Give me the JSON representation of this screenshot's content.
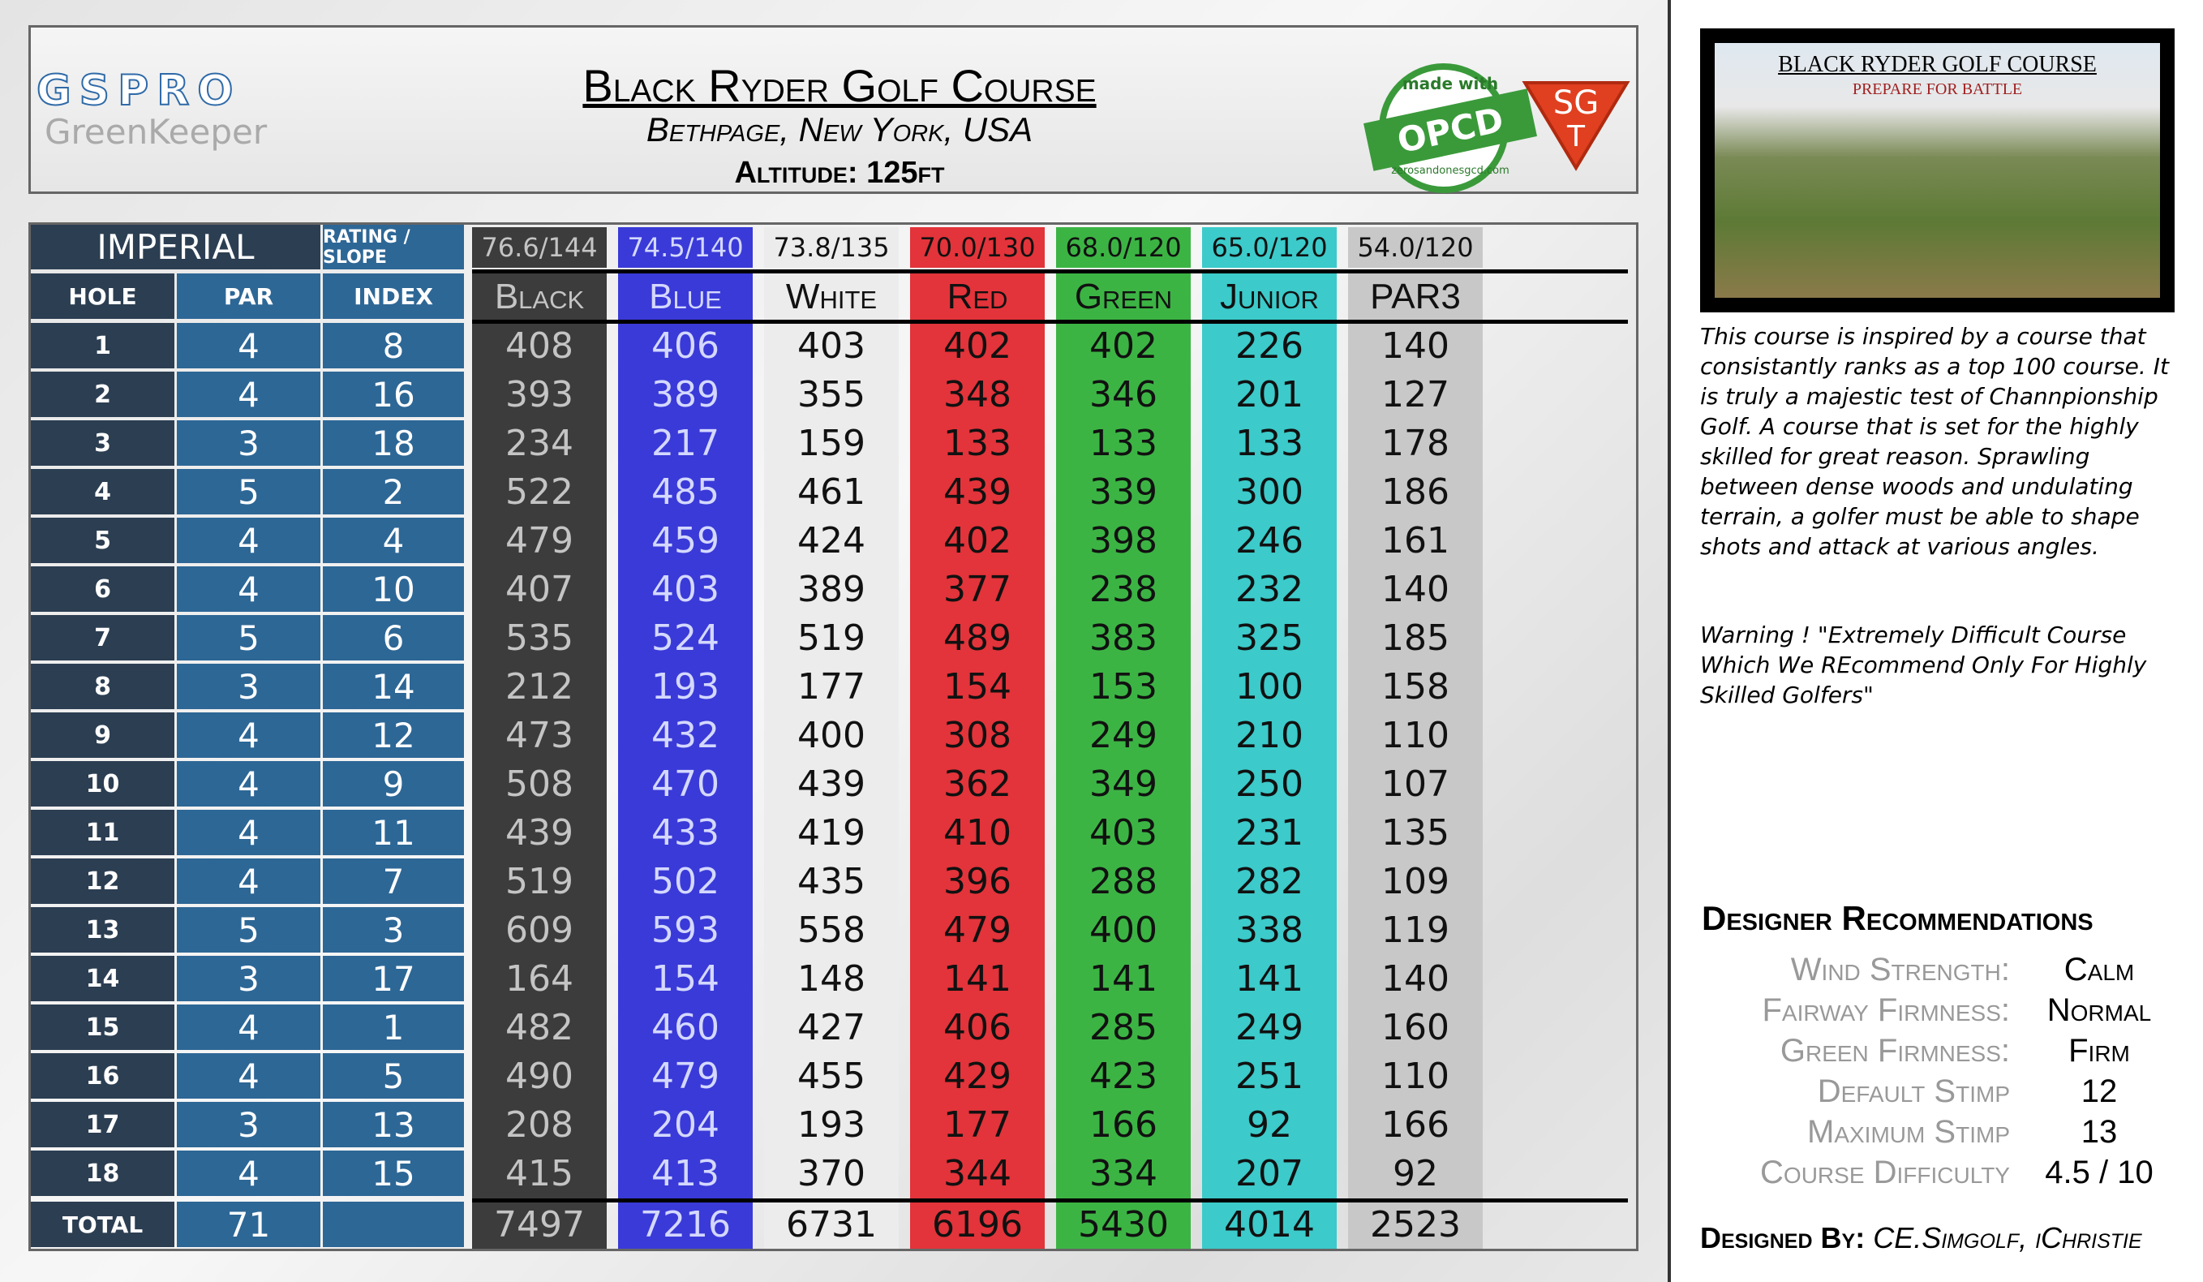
{
  "header": {
    "logo": "GSPRO",
    "logo_sub": "GreenKeeper",
    "title": "Black Ryder Golf Course",
    "location": "Bethpage, New York, USA",
    "altitude": "Altitude: 125ft",
    "badge_top": "made with",
    "badge_main": "OPCD",
    "badge_url": "zerosandonesgcd.com",
    "sgt_top": "SG",
    "sgt_bottom": "T"
  },
  "table": {
    "system": "IMPERIAL",
    "rating_label": "RATING / SLOPE",
    "columns": [
      "HOLE",
      "PAR",
      "INDEX"
    ],
    "total_label": "TOTAL",
    "holes": [
      1,
      2,
      3,
      4,
      5,
      6,
      7,
      8,
      9,
      10,
      11,
      12,
      13,
      14,
      15,
      16,
      17,
      18
    ],
    "par": [
      4,
      4,
      3,
      5,
      4,
      4,
      5,
      3,
      4,
      4,
      4,
      4,
      5,
      3,
      4,
      4,
      3,
      4
    ],
    "index": [
      8,
      16,
      18,
      2,
      4,
      10,
      6,
      14,
      12,
      9,
      11,
      7,
      3,
      17,
      1,
      5,
      13,
      15
    ],
    "par_total": 71,
    "tees": [
      {
        "name": "Black",
        "rating": "76.6/144",
        "color": "#3c3c3c",
        "text_color": "#c4c4c4",
        "yards": [
          408,
          393,
          234,
          522,
          479,
          407,
          535,
          212,
          473,
          508,
          439,
          519,
          609,
          164,
          482,
          490,
          208,
          415
        ],
        "total": 7497
      },
      {
        "name": "Blue",
        "rating": "74.5/140",
        "color": "#3a3ad8",
        "text_color": "#d4d8ff",
        "yards": [
          406,
          389,
          217,
          485,
          459,
          403,
          524,
          193,
          432,
          470,
          433,
          502,
          593,
          154,
          460,
          479,
          204,
          413
        ],
        "total": 7216
      },
      {
        "name": "White",
        "rating": "73.8/135",
        "color": "#ececec",
        "text_color": "#111111",
        "yards": [
          403,
          355,
          159,
          461,
          424,
          389,
          519,
          177,
          400,
          439,
          419,
          435,
          558,
          148,
          427,
          455,
          193,
          370
        ],
        "total": 6731
      },
      {
        "name": "Red",
        "rating": "70.0/130",
        "color": "#e2343a",
        "text_color": "#111111",
        "yards": [
          402,
          348,
          133,
          439,
          402,
          377,
          489,
          154,
          308,
          362,
          410,
          396,
          479,
          141,
          406,
          429,
          177,
          344
        ],
        "total": 6196
      },
      {
        "name": "Green",
        "rating": "68.0/120",
        "color": "#3cb444",
        "text_color": "#111111",
        "yards": [
          402,
          346,
          133,
          339,
          398,
          238,
          383,
          153,
          249,
          349,
          403,
          288,
          400,
          141,
          285,
          423,
          166,
          334
        ],
        "total": 5430
      },
      {
        "name": "Junior",
        "rating": "65.0/120",
        "color": "#3ccaca",
        "text_color": "#111111",
        "yards": [
          226,
          201,
          133,
          300,
          246,
          232,
          325,
          100,
          210,
          250,
          231,
          282,
          338,
          141,
          249,
          251,
          92,
          207
        ],
        "total": 4014
      },
      {
        "name": "PAR3",
        "rating": "54.0/120",
        "color": "#c8c8c8",
        "text_color": "#111111",
        "yards": [
          140,
          127,
          178,
          186,
          161,
          140,
          185,
          158,
          110,
          107,
          135,
          109,
          119,
          140,
          160,
          110,
          166,
          92
        ],
        "total": 2523
      }
    ]
  },
  "sidebar": {
    "promo_title": "BLACK RYDER GOLF COURSE",
    "promo_subtitle": "PREPARE FOR BATTLE",
    "description": "This course is inspired by a course that consistantly ranks as a top 100 course. It is truly a majestic test of Channpionship Golf.  A course that is set for the highly skilled for great reason.  Sprawling between dense woods and undulating terrain, a golfer must be able to shape shots and attack at various angles.",
    "warning": "Warning !  \"Extremely Difficult Course Which We REcommend Only For Highly Skilled Golfers\"",
    "recommendations_title": "Designer Recommendations",
    "recommendations": [
      {
        "label": "Wind Strength:",
        "value": "Calm"
      },
      {
        "label": "Fairway Firmness:",
        "value": "Normal"
      },
      {
        "label": "Green Firmness:",
        "value": "Firm"
      },
      {
        "label": "Default Stimp",
        "value": 12
      },
      {
        "label": "Maximum Stimp",
        "value": 13
      },
      {
        "label": "Course Difficulty",
        "value": "4.5 / 10"
      }
    ],
    "designed_by_label": "Designed By:",
    "designed_by": "CE.Simgolf, iChristie"
  }
}
